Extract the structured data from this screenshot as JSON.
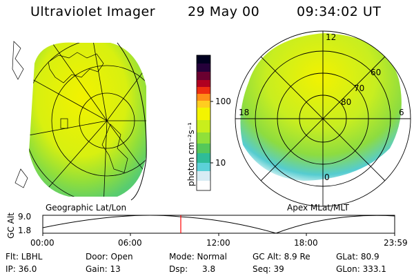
{
  "header": {
    "instrument": "Ultraviolet Imager",
    "date": "29 May 00",
    "time": "09:34:02 UT"
  },
  "colorbar": {
    "unit_label": "photon cm⁻²s⁻¹",
    "tick_labels": [
      "100",
      "10"
    ],
    "colors": [
      "#ffffff",
      "#d8ecf4",
      "#5cd1d8",
      "#2fbc98",
      "#55c85a",
      "#90e03a",
      "#c9ee1c",
      "#f4f400",
      "#ffcd20",
      "#ff8e18",
      "#ee2f10",
      "#b00020",
      "#6a0030",
      "#25003a",
      "#000020"
    ]
  },
  "left_panel": {
    "title": "Geographic Lat/Lon"
  },
  "right_panel": {
    "title": "Apex MLat/MLT",
    "lat_labels": [
      "60",
      "70",
      "80"
    ],
    "mlt_labels": [
      "12",
      "18",
      "6",
      "0"
    ]
  },
  "altitude_plot": {
    "ylabel": "GC Alt",
    "y_ticks": [
      "9.0",
      "1.8"
    ],
    "time_ticks": [
      "00:00",
      "06:00",
      "12:00",
      "18:00",
      "23:59"
    ],
    "current_time_marker": "09:34"
  },
  "info": {
    "flt": "Flt: LBHL",
    "ip": "IP: 36.0",
    "door": "Door: Open",
    "gain": "Gain: 13",
    "mode": "Mode: Normal",
    "dsp_label": "Dsp:",
    "dsp_value": "3.8",
    "gc_alt": "GC Alt: 8.9 Re",
    "seq": "Seq: 39",
    "glat": "GLat: 80.9",
    "glon": "GLon: 333.1"
  },
  "colors": {
    "image_yellow": "#f2f200",
    "image_green": "#9fe23a",
    "image_cyan": "#55ccd0",
    "marker_red": "#ff0000"
  }
}
